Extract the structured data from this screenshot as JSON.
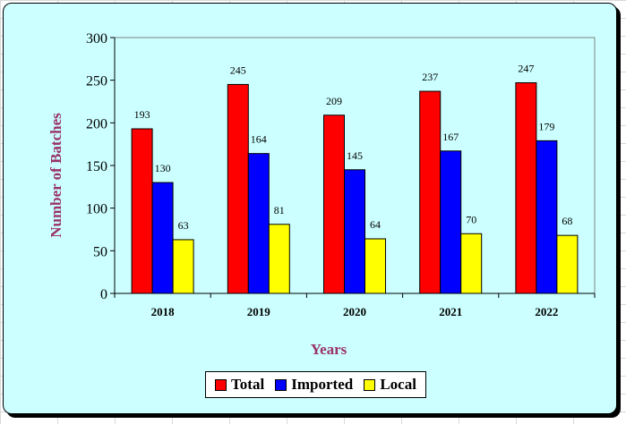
{
  "chart_data": {
    "type": "bar",
    "categories": [
      "2018",
      "2019",
      "2020",
      "2021",
      "2022"
    ],
    "series": [
      {
        "name": "Total",
        "color": "#ff0000",
        "values": [
          193,
          245,
          209,
          237,
          247
        ]
      },
      {
        "name": "Imported",
        "color": "#0000ff",
        "values": [
          130,
          164,
          145,
          167,
          179
        ]
      },
      {
        "name": "Local",
        "color": "#ffff00",
        "values": [
          63,
          81,
          64,
          70,
          68
        ]
      }
    ],
    "xlabel": "Years",
    "ylabel": "Number of  Batches",
    "ylim": [
      0,
      300
    ],
    "yticks": [
      "0",
      "50",
      "100",
      "150",
      "200",
      "250",
      "300"
    ],
    "grid": false,
    "legend_position": "bottom"
  }
}
